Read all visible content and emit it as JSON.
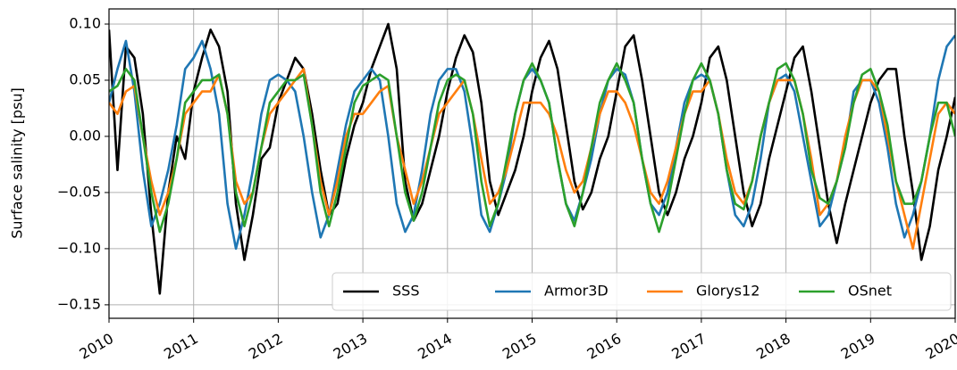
{
  "chart_data": {
    "type": "line",
    "ylabel": "Surface salinity [psu]",
    "x": [
      2010,
      2010.1,
      2010.2,
      2010.3,
      2010.4,
      2010.5,
      2010.6,
      2010.7,
      2010.8,
      2010.9,
      2011,
      2011.1,
      2011.2,
      2011.3,
      2011.4,
      2011.5,
      2011.6,
      2011.7,
      2011.8,
      2011.9,
      2012,
      2012.1,
      2012.2,
      2012.3,
      2012.4,
      2012.5,
      2012.6,
      2012.7,
      2012.8,
      2012.9,
      2013,
      2013.1,
      2013.2,
      2013.3,
      2013.4,
      2013.5,
      2013.6,
      2013.7,
      2013.8,
      2013.9,
      2014,
      2014.1,
      2014.2,
      2014.3,
      2014.4,
      2014.5,
      2014.6,
      2014.7,
      2014.8,
      2014.9,
      2015,
      2015.1,
      2015.2,
      2015.3,
      2015.4,
      2015.5,
      2015.6,
      2015.7,
      2015.8,
      2015.9,
      2016,
      2016.1,
      2016.2,
      2016.3,
      2016.4,
      2016.5,
      2016.6,
      2016.7,
      2016.8,
      2016.9,
      2017,
      2017.1,
      2017.2,
      2017.3,
      2017.4,
      2017.5,
      2017.6,
      2017.7,
      2017.8,
      2017.9,
      2018,
      2018.1,
      2018.2,
      2018.3,
      2018.4,
      2018.5,
      2018.6,
      2018.7,
      2018.8,
      2018.9,
      2019,
      2019.1,
      2019.2,
      2019.3,
      2019.4,
      2019.5,
      2019.6,
      2019.7,
      2019.8,
      2019.9,
      2020
    ],
    "series": [
      {
        "name": "SSS",
        "color": "#000000",
        "values": [
          0.095,
          -0.03,
          0.08,
          0.07,
          0.02,
          -0.07,
          -0.14,
          -0.05,
          0.0,
          -0.02,
          0.04,
          0.07,
          0.095,
          0.08,
          0.04,
          -0.06,
          -0.11,
          -0.07,
          -0.02,
          -0.01,
          0.03,
          0.05,
          0.07,
          0.06,
          0.02,
          -0.03,
          -0.07,
          -0.06,
          -0.02,
          0.01,
          0.03,
          0.06,
          0.08,
          0.1,
          0.06,
          -0.04,
          -0.075,
          -0.06,
          -0.03,
          0.0,
          0.04,
          0.07,
          0.09,
          0.075,
          0.03,
          -0.04,
          -0.07,
          -0.05,
          -0.03,
          0.0,
          0.04,
          0.07,
          0.085,
          0.06,
          0.01,
          -0.04,
          -0.065,
          -0.05,
          -0.02,
          0.0,
          0.04,
          0.08,
          0.09,
          0.05,
          0.0,
          -0.05,
          -0.07,
          -0.05,
          -0.02,
          0.0,
          0.03,
          0.07,
          0.08,
          0.05,
          0.0,
          -0.05,
          -0.08,
          -0.06,
          -0.02,
          0.01,
          0.04,
          0.07,
          0.08,
          0.04,
          -0.01,
          -0.06,
          -0.095,
          -0.06,
          -0.03,
          0.0,
          0.03,
          0.05,
          0.06,
          0.06,
          0.0,
          -0.05,
          -0.11,
          -0.08,
          -0.03,
          0.0,
          0.035
        ]
      },
      {
        "name": "Armor3D",
        "color": "#1f77b4",
        "values": [
          0.03,
          0.06,
          0.085,
          0.04,
          -0.03,
          -0.08,
          -0.06,
          -0.03,
          0.01,
          0.06,
          0.07,
          0.085,
          0.06,
          0.02,
          -0.06,
          -0.1,
          -0.07,
          -0.03,
          0.02,
          0.05,
          0.055,
          0.05,
          0.04,
          0.0,
          -0.05,
          -0.09,
          -0.07,
          -0.03,
          0.01,
          0.04,
          0.05,
          0.06,
          0.05,
          0.0,
          -0.06,
          -0.085,
          -0.07,
          -0.03,
          0.02,
          0.05,
          0.06,
          0.06,
          0.04,
          -0.01,
          -0.07,
          -0.085,
          -0.06,
          -0.03,
          0.02,
          0.05,
          0.06,
          0.05,
          0.03,
          -0.02,
          -0.06,
          -0.075,
          -0.05,
          -0.02,
          0.02,
          0.05,
          0.06,
          0.055,
          0.03,
          -0.02,
          -0.06,
          -0.07,
          -0.05,
          -0.01,
          0.03,
          0.05,
          0.055,
          0.05,
          0.02,
          -0.03,
          -0.07,
          -0.08,
          -0.06,
          -0.02,
          0.03,
          0.05,
          0.055,
          0.04,
          0.0,
          -0.04,
          -0.08,
          -0.07,
          -0.04,
          -0.01,
          0.04,
          0.05,
          0.05,
          0.03,
          -0.01,
          -0.06,
          -0.09,
          -0.07,
          -0.04,
          0.0,
          0.05,
          0.08,
          0.09
        ]
      },
      {
        "name": "Glorys12",
        "color": "#ff7f0e",
        "values": [
          0.03,
          0.02,
          0.04,
          0.045,
          0.0,
          -0.04,
          -0.07,
          -0.05,
          -0.02,
          0.02,
          0.03,
          0.04,
          0.04,
          0.055,
          0.02,
          -0.04,
          -0.06,
          -0.05,
          -0.01,
          0.02,
          0.03,
          0.04,
          0.05,
          0.06,
          0.01,
          -0.04,
          -0.07,
          -0.04,
          0.0,
          0.02,
          0.02,
          0.03,
          0.04,
          0.045,
          0.0,
          -0.03,
          -0.06,
          -0.04,
          -0.01,
          0.02,
          0.03,
          0.04,
          0.05,
          0.02,
          -0.02,
          -0.06,
          -0.05,
          -0.03,
          0.0,
          0.03,
          0.03,
          0.03,
          0.02,
          0.0,
          -0.03,
          -0.05,
          -0.04,
          -0.01,
          0.02,
          0.04,
          0.04,
          0.03,
          0.01,
          -0.02,
          -0.05,
          -0.06,
          -0.04,
          -0.01,
          0.02,
          0.04,
          0.04,
          0.05,
          0.02,
          -0.02,
          -0.05,
          -0.06,
          -0.04,
          0.0,
          0.03,
          0.05,
          0.05,
          0.05,
          0.02,
          -0.02,
          -0.07,
          -0.06,
          -0.04,
          0.0,
          0.03,
          0.05,
          0.05,
          0.04,
          0.0,
          -0.04,
          -0.07,
          -0.1,
          -0.06,
          -0.02,
          0.02,
          0.03,
          0.02
        ]
      },
      {
        "name": "OSnet",
        "color": "#2ca02c",
        "values": [
          0.04,
          0.045,
          0.06,
          0.05,
          0.0,
          -0.05,
          -0.085,
          -0.06,
          -0.02,
          0.03,
          0.04,
          0.05,
          0.05,
          0.055,
          0.02,
          -0.05,
          -0.08,
          -0.05,
          -0.01,
          0.03,
          0.04,
          0.05,
          0.05,
          0.055,
          0.01,
          -0.05,
          -0.08,
          -0.05,
          -0.01,
          0.03,
          0.045,
          0.05,
          0.055,
          0.05,
          0.0,
          -0.05,
          -0.075,
          -0.05,
          -0.01,
          0.03,
          0.05,
          0.055,
          0.05,
          0.02,
          -0.04,
          -0.08,
          -0.06,
          -0.02,
          0.02,
          0.05,
          0.065,
          0.05,
          0.03,
          -0.02,
          -0.06,
          -0.08,
          -0.05,
          -0.01,
          0.03,
          0.05,
          0.065,
          0.05,
          0.03,
          -0.02,
          -0.06,
          -0.085,
          -0.06,
          -0.02,
          0.02,
          0.05,
          0.065,
          0.05,
          0.02,
          -0.03,
          -0.06,
          -0.065,
          -0.04,
          0.0,
          0.03,
          0.06,
          0.065,
          0.05,
          0.02,
          -0.03,
          -0.055,
          -0.06,
          -0.04,
          -0.01,
          0.03,
          0.055,
          0.06,
          0.04,
          0.01,
          -0.04,
          -0.06,
          -0.06,
          -0.04,
          0.0,
          0.03,
          0.03,
          0.0
        ]
      }
    ],
    "xlim": [
      2010,
      2020
    ],
    "xticks": [
      2010,
      2011,
      2012,
      2013,
      2014,
      2015,
      2016,
      2017,
      2018,
      2019,
      2020
    ],
    "ylim": [
      -0.162,
      0.1135
    ],
    "yticks": [
      {
        "value": 0.1,
        "label": "0.10"
      },
      0.05,
      {
        "value": 0,
        "label": "0.00"
      },
      {
        "value": -0.05,
        "label": "−0.05"
      },
      {
        "value": -0.1,
        "label": "−0.10"
      },
      {
        "value": -0.15,
        "label": "−0.15"
      }
    ],
    "grid": true,
    "legend": "lower right"
  }
}
